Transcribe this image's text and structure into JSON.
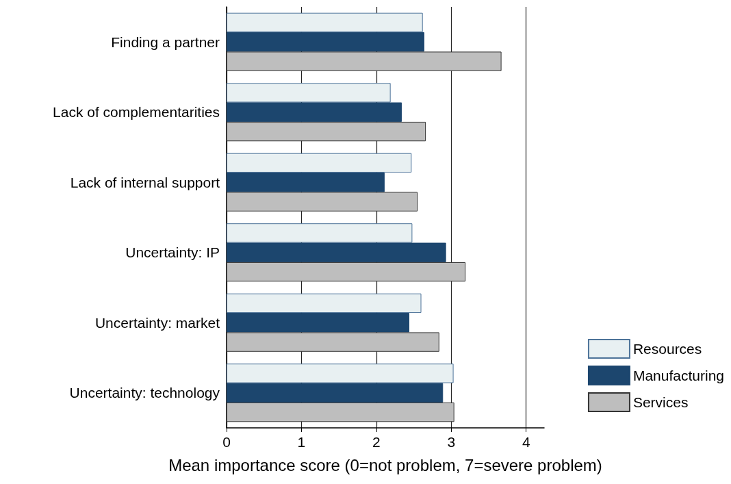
{
  "chart_data": {
    "type": "bar",
    "orientation": "horizontal",
    "xlabel": "Mean importance score (0=not problem, 7=severe problem)",
    "categories": [
      "Finding a partner",
      "Lack of complementarities",
      "Lack of internal support",
      "Uncertainty: IP",
      "Uncertainty: market",
      "Uncertainty: technology"
    ],
    "series": [
      {
        "name": "Resources",
        "color": "#e8f0f2",
        "values": [
          2.62,
          2.19,
          2.47,
          2.48,
          2.6,
          3.03
        ]
      },
      {
        "name": "Manufacturing",
        "color": "#1c466e",
        "values": [
          2.64,
          2.34,
          2.11,
          2.93,
          2.44,
          2.89
        ]
      },
      {
        "name": "Services",
        "color": "#bebebe",
        "values": [
          3.67,
          2.66,
          2.55,
          3.19,
          2.84,
          3.04
        ]
      }
    ],
    "xlim": [
      0,
      4.24
    ],
    "xticks": [
      0,
      1,
      2,
      3,
      4
    ],
    "grid": "x",
    "legend": "bottom right"
  }
}
